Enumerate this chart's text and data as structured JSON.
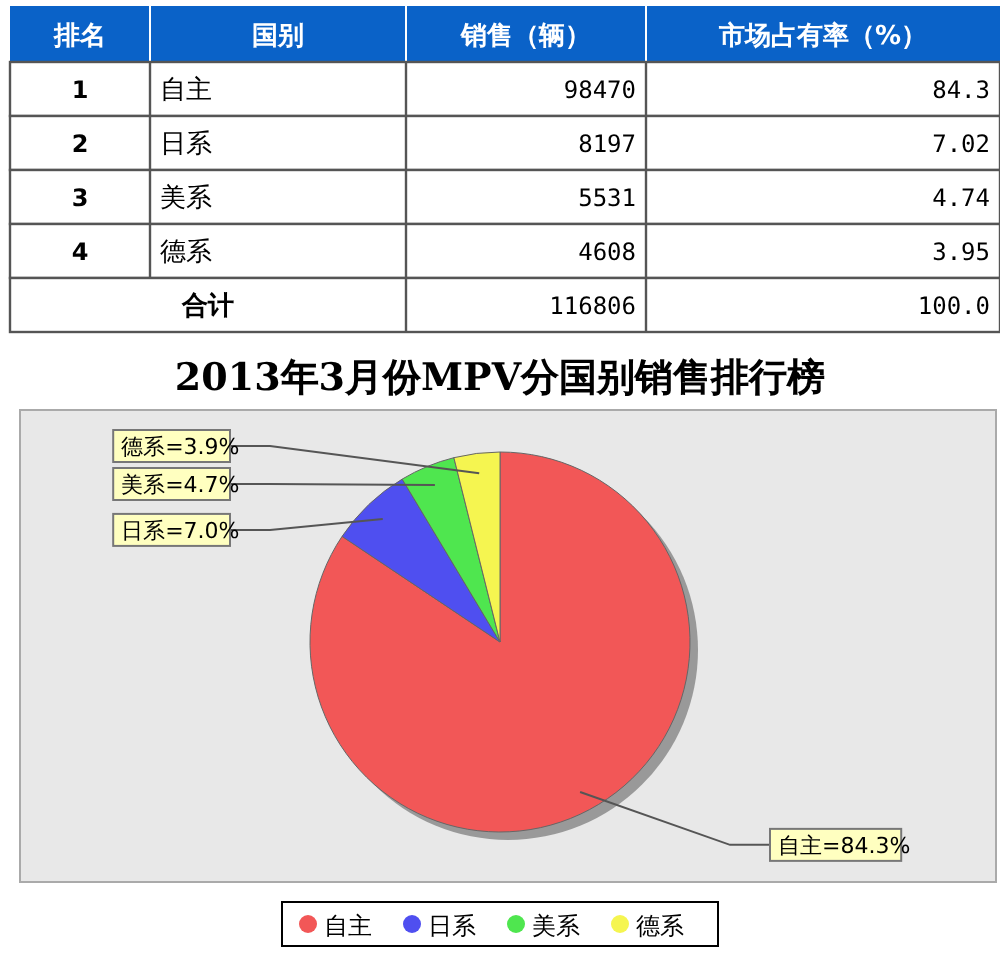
{
  "chart_data": [
    {
      "type": "other",
      "xlabel": "国别",
      "categories": [
        "自主",
        "日系",
        "美系",
        "德系"
      ],
      "series": [
        {
          "name": "排名",
          "values": [
            1,
            2,
            3,
            4
          ]
        },
        {
          "name": "销售（辆）",
          "values": [
            98470,
            8197,
            5531,
            4608
          ]
        },
        {
          "name": "市场占有率（%）",
          "values": [
            84.3,
            7.02,
            4.74,
            3.95
          ]
        }
      ],
      "data_labels": true,
      "annotations": [
        "合计",
        "116806",
        "100.0"
      ]
    },
    {
      "type": "pie",
      "title": "2013年3月份MPV分国别销售排行榜",
      "categories": [
        "自主",
        "日系",
        "美系",
        "德系"
      ],
      "values": [
        84.3,
        7.0,
        4.7,
        3.9
      ],
      "colors": [
        "#f25757",
        "#4f4ff0",
        "#4fe64f",
        "#f5f550"
      ],
      "value_labels": [
        "自主=84.3%",
        "日系=7.0%",
        "美系=4.7%",
        "德系=3.9%"
      ],
      "legend": "bottom"
    }
  ]
}
